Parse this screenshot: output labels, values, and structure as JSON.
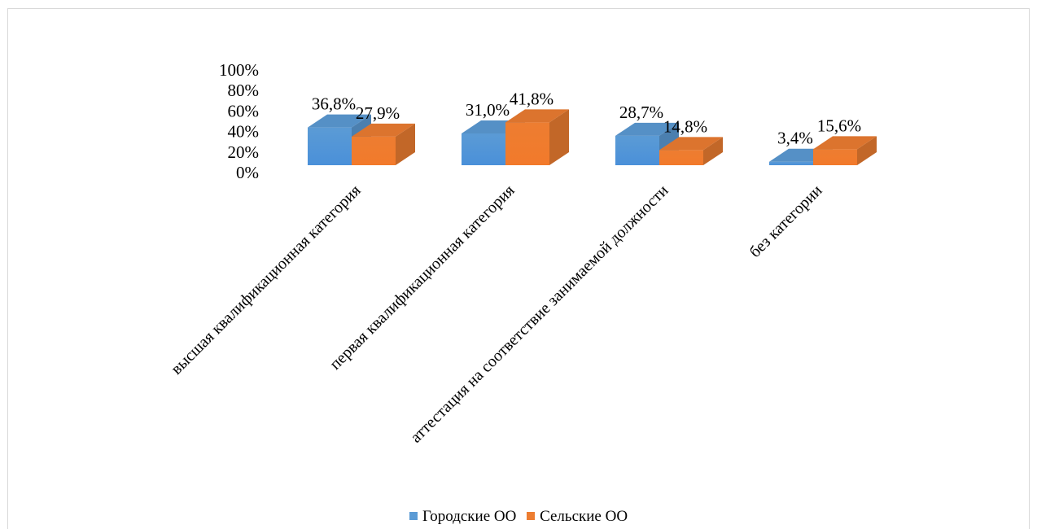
{
  "chart_data": {
    "type": "bar",
    "title": "",
    "xlabel": "",
    "ylabel": "",
    "ylim": [
      0,
      100
    ],
    "y_ticks": [
      "0%",
      "20%",
      "40%",
      "60%",
      "80%",
      "100%"
    ],
    "y_tick_values": [
      0,
      20,
      40,
      60,
      80,
      100
    ],
    "categories": [
      "высшая квалификационная категория",
      "первая квалификационная категория",
      "аттестация на соответствие занимаемой должности",
      "без категории"
    ],
    "series": [
      {
        "name": "Городские ОО",
        "color": "#5b9bd5",
        "values": [
          36.8,
          31.0,
          28.7,
          3.4
        ],
        "labels": [
          "36,8%",
          "31,0%",
          "28,7%",
          "3,4%"
        ]
      },
      {
        "name": "Сельские ОО",
        "color": "#ed7d31",
        "values": [
          27.9,
          41.8,
          14.8,
          15.6
        ],
        "labels": [
          "27,9%",
          "41,8%",
          "14,8%",
          "15,6%"
        ]
      }
    ],
    "legend_position": "bottom",
    "grid": false,
    "style": "3d-clustered-column"
  }
}
